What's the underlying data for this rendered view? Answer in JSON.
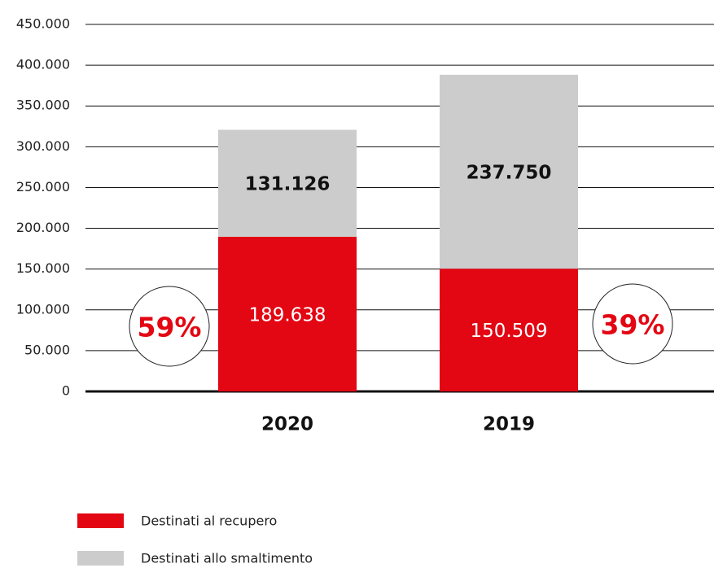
{
  "chart_data": {
    "type": "stacked_bar",
    "categories": [
      "2020",
      "2019"
    ],
    "series": [
      {
        "name": "Destinati al recupero",
        "color": "#e30613",
        "values": [
          189638,
          150509
        ],
        "value_labels": [
          "189.638",
          "150.509"
        ]
      },
      {
        "name": "Destinati allo smaltimento",
        "color": "#cccccc",
        "values": [
          131126,
          237750
        ],
        "value_labels": [
          "131.126",
          "237.750"
        ]
      }
    ],
    "ylim": [
      0,
      450000
    ],
    "yticks": [
      0,
      {
        "value": 50000,
        "label": "50.000"
      },
      {
        "value": 100000,
        "label": "100.000"
      },
      {
        "value": 150000,
        "label": "150.000"
      },
      {
        "value": 200000,
        "label": "200.000"
      },
      {
        "value": 250000,
        "label": "250.000"
      },
      {
        "value": 300000,
        "label": "300.000"
      },
      {
        "value": 350000,
        "label": "350.000"
      },
      {
        "value": 400000,
        "label": "400.000"
      },
      {
        "value": 450000,
        "label": "450.000"
      }
    ],
    "grid": true,
    "annotations": [
      {
        "value": 59,
        "label": "59%"
      },
      {
        "value": 39,
        "label": "39%"
      }
    ]
  }
}
